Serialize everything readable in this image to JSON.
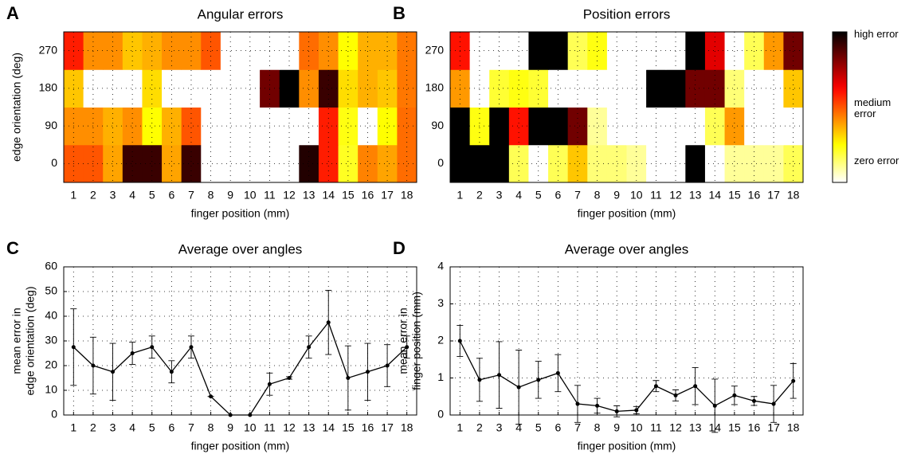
{
  "chart_data": [
    {
      "type": "heatmap",
      "label": "A",
      "title": "Angular errors",
      "xlabel": "finger position (mm)",
      "ylabel": "edge orientation (deg)",
      "x": [
        1,
        2,
        3,
        4,
        5,
        6,
        7,
        8,
        9,
        10,
        11,
        12,
        13,
        14,
        15,
        16,
        17,
        18
      ],
      "y": [
        0,
        90,
        180,
        270
      ],
      "values": [
        [
          30,
          30,
          23,
          55,
          55,
          23,
          55,
          0,
          0,
          0,
          0,
          0,
          57,
          35,
          13,
          26,
          23,
          28
        ],
        [
          25,
          25,
          22,
          25,
          15,
          22,
          30,
          0,
          0,
          0,
          0,
          0,
          0,
          35,
          14,
          0,
          15,
          28
        ],
        [
          20,
          0,
          0,
          0,
          18,
          0,
          0,
          0,
          0,
          0,
          50,
          60,
          25,
          55,
          18,
          22,
          20,
          27
        ],
        [
          35,
          25,
          25,
          20,
          22,
          25,
          25,
          30,
          0,
          0,
          0,
          0,
          28,
          25,
          15,
          22,
          22,
          27
        ]
      ],
      "clim": [
        0,
        60
      ],
      "colormap": "hot_r",
      "grid": true
    },
    {
      "type": "heatmap",
      "label": "B",
      "title": "Position errors",
      "xlabel": "finger position (mm)",
      "x": [
        1,
        2,
        3,
        4,
        5,
        6,
        7,
        8,
        9,
        10,
        11,
        12,
        13,
        14,
        15,
        16,
        17,
        18
      ],
      "y": [
        0,
        90,
        180,
        270
      ],
      "values": [
        [
          3,
          3,
          3,
          0.5,
          0,
          0.5,
          1.0,
          0.4,
          0.4,
          0.3,
          0,
          0,
          3,
          0,
          0.3,
          0.3,
          0.3,
          0.5
        ],
        [
          3,
          0.7,
          3,
          1.8,
          3,
          3,
          2.5,
          0.3,
          0,
          0,
          0,
          0,
          0,
          0.5,
          1.2,
          0,
          0,
          0
        ],
        [
          1.2,
          0,
          0.6,
          0.7,
          0.6,
          0,
          0,
          0,
          0,
          0,
          3,
          3,
          2.5,
          2.5,
          0.4,
          0,
          0,
          1.0
        ],
        [
          1.8,
          0,
          0,
          0,
          3,
          3,
          0.5,
          0.7,
          0,
          0,
          0,
          0,
          3,
          2,
          0,
          0.5,
          1.2,
          2.5
        ]
      ],
      "clim": [
        0,
        3
      ],
      "colormap": "hot_r",
      "grid": true,
      "colorbar_labels": [
        "high error",
        "medium error",
        "zero error"
      ]
    },
    {
      "type": "line",
      "label": "C",
      "title": "Average over angles",
      "xlabel": "finger position (mm)",
      "ylabel": [
        "mean error in",
        "edge orientation (deg)"
      ],
      "x": [
        1,
        2,
        3,
        4,
        5,
        6,
        7,
        8,
        9,
        10,
        11,
        12,
        13,
        14,
        15,
        16,
        17,
        18
      ],
      "values": [
        27.5,
        20,
        17.5,
        25,
        27.5,
        17.5,
        27.5,
        7.5,
        0,
        0,
        12.5,
        15,
        27.5,
        37.5,
        15,
        17.5,
        20,
        27.5
      ],
      "errors": [
        15.5,
        11.5,
        11.5,
        4.5,
        4.5,
        4.5,
        4.5,
        0,
        0,
        0,
        4.5,
        0.5,
        4.5,
        13,
        13,
        11.5,
        8.5,
        4.5
      ],
      "xlim": [
        0.5,
        18.5
      ],
      "ylim": [
        0,
        60
      ],
      "xticks": [
        1,
        2,
        3,
        4,
        5,
        6,
        7,
        8,
        9,
        10,
        11,
        12,
        13,
        14,
        15,
        16,
        17,
        18
      ],
      "yticks": [
        0,
        10,
        20,
        30,
        40,
        50,
        60
      ],
      "color": "#000000",
      "grid": true
    },
    {
      "type": "line",
      "label": "D",
      "title": "Average over angles",
      "xlabel": "finger position (mm)",
      "ylabel": [
        "mean error in",
        "finger position (mm)"
      ],
      "x": [
        1,
        2,
        3,
        4,
        5,
        6,
        7,
        8,
        9,
        10,
        11,
        12,
        13,
        14,
        15,
        16,
        17,
        18
      ],
      "values": [
        2.0,
        0.95,
        1.08,
        0.75,
        0.95,
        1.13,
        0.3,
        0.25,
        0.1,
        0.13,
        0.78,
        0.53,
        0.78,
        0.25,
        0.53,
        0.38,
        0.3,
        0.92
      ],
      "errors": [
        0.42,
        0.58,
        0.9,
        1.0,
        0.5,
        0.5,
        0.5,
        0.2,
        0.15,
        0.1,
        0.15,
        0.15,
        0.5,
        0.72,
        0.25,
        0.12,
        0.5,
        0.47
      ],
      "xlim": [
        0.5,
        18.5
      ],
      "ylim": [
        0,
        4
      ],
      "xticks": [
        1,
        2,
        3,
        4,
        5,
        6,
        7,
        8,
        9,
        10,
        11,
        12,
        13,
        14,
        15,
        16,
        17,
        18
      ],
      "yticks": [
        0,
        1,
        2,
        3,
        4
      ],
      "color": "#000000",
      "grid": true
    }
  ]
}
